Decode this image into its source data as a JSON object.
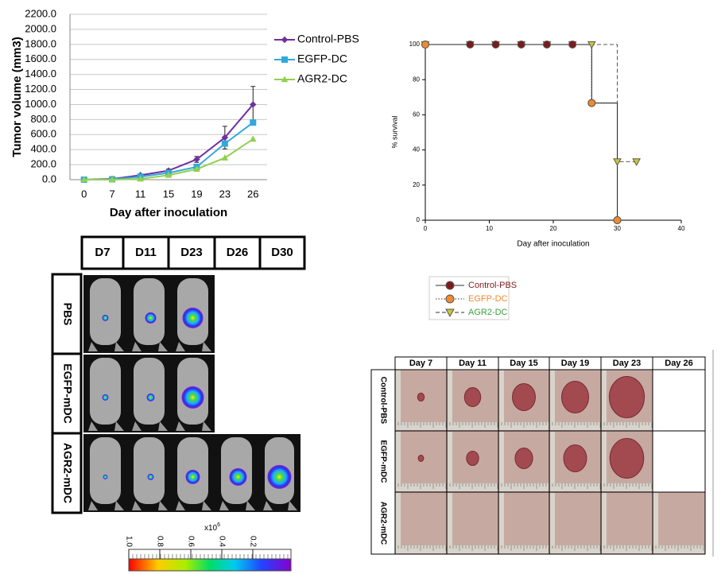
{
  "chart_data": [
    {
      "type": "line",
      "y_label": "Tumor volume (mm3)",
      "x_label": "Day after inoculation",
      "categories": [
        "0",
        "7",
        "11",
        "15",
        "19",
        "23",
        "26"
      ],
      "ylim": [
        0,
        2200
      ],
      "yticks": [
        {
          "value": 0,
          "label": "0.0"
        },
        {
          "value": 200,
          "label": "200.0"
        },
        {
          "value": 400,
          "label": "400.0"
        },
        {
          "value": 600,
          "label": "600.0"
        },
        {
          "value": 800,
          "label": "800.0"
        },
        {
          "value": 1000,
          "label": "1000.0"
        },
        {
          "value": 1200,
          "label": "1200.0"
        },
        {
          "value": 1400,
          "label": "1400.0"
        },
        {
          "value": 1600,
          "label": "1600.0"
        },
        {
          "value": 1800,
          "label": "1800.0"
        },
        {
          "value": 2000,
          "label": "2000.0"
        },
        {
          "value": 2200,
          "label": "2200.0"
        }
      ],
      "grid": true,
      "series": [
        {
          "name": "Control-PBS",
          "color": "#7030a0",
          "marker": "diamond",
          "values": [
            0,
            10,
            60,
            120,
            270,
            560,
            1000
          ],
          "errors": [
            0,
            5,
            15,
            20,
            40,
            150,
            240
          ]
        },
        {
          "name": "EGFP-DC",
          "color": "#31a9dd",
          "marker": "square",
          "values": [
            0,
            5,
            40,
            90,
            170,
            480,
            760
          ]
        },
        {
          "name": "AGR2-DC",
          "color": "#92d050",
          "marker": "triangle",
          "values": [
            0,
            0,
            10,
            60,
            140,
            290,
            540
          ]
        }
      ]
    },
    {
      "type": "step",
      "y_label": "% survival",
      "x_label": "Day after inoculation",
      "xlim": [
        0,
        40
      ],
      "xticks": [
        0,
        10,
        20,
        30,
        40
      ],
      "ylim": [
        0,
        100
      ],
      "yticks": [
        0,
        20,
        40,
        60,
        80,
        100
      ],
      "series": [
        {
          "name": "Control-PBS",
          "color": "#7b1c1c",
          "label_color": "#7b1c1c",
          "marker": "circle",
          "dash": "solid",
          "x": [
            0,
            7,
            11,
            15,
            19,
            23,
            26,
            30
          ],
          "values": [
            100,
            100,
            100,
            100,
            100,
            100,
            66.7,
            0
          ]
        },
        {
          "name": "EGFP-DC",
          "color": "#f08a2c",
          "label_color": "#f08a2c",
          "marker": "circle",
          "dash": "dotted",
          "x": [
            0,
            26,
            30
          ],
          "values": [
            100,
            66.7,
            0
          ]
        },
        {
          "name": "AGR2-DC",
          "color": "#c8c832",
          "label_color": "#3aa33a",
          "marker": "triangle-down",
          "dash": "dashed",
          "x": [
            0,
            7,
            11,
            15,
            19,
            23,
            26,
            30,
            33
          ],
          "values": [
            100,
            100,
            100,
            100,
            100,
            100,
            100,
            33.3,
            33.3
          ]
        }
      ]
    }
  ],
  "imaging": {
    "columns": [
      "D7",
      "D11",
      "D23",
      "D26",
      "D30"
    ],
    "rows": [
      "PBS",
      "EGFP-mDC",
      "AGR2-mDC"
    ]
  },
  "colorbar": {
    "label_base": "x10",
    "label_exp": "6",
    "ticks": [
      {
        "value": 1,
        "label": "1.0"
      },
      {
        "value": 0.8,
        "label": "0.8"
      },
      {
        "value": 0.6,
        "label": "0.6"
      },
      {
        "value": 0.4,
        "label": "0.4"
      },
      {
        "value": 0.2,
        "label": "0.2"
      }
    ]
  },
  "photos": {
    "columns": [
      "Day 7",
      "Day 11",
      "Day 15",
      "Day 19",
      "Day 23",
      "Day 26"
    ],
    "rows": [
      "Control-PBS",
      "EGFP-mDC",
      "AGR2-mDC"
    ]
  }
}
